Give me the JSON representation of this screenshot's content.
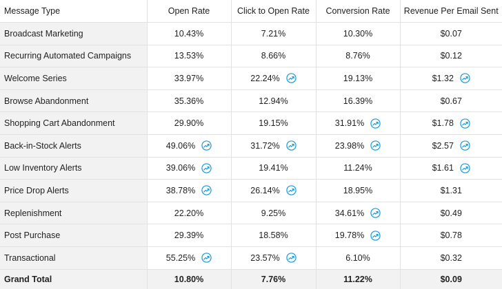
{
  "colors": {
    "trend_icon": "#1a9ad6",
    "label_bg": "#f2f2f2",
    "border": "#e2e2e2"
  },
  "table": {
    "headers": [
      "Message Type",
      "Open Rate",
      "Click to Open Rate",
      "Conversion Rate",
      "Revenue Per Email Sent"
    ],
    "rows": [
      {
        "type": "Broadcast Marketing",
        "open": "10.43%",
        "open_up": false,
        "cto": "7.21%",
        "cto_up": false,
        "conv": "10.30%",
        "conv_up": false,
        "rev": "$0.07",
        "rev_up": false
      },
      {
        "type": "Recurring Automated Campaigns",
        "open": "13.53%",
        "open_up": false,
        "cto": "8.66%",
        "cto_up": false,
        "conv": "8.76%",
        "conv_up": false,
        "rev": "$0.12",
        "rev_up": false
      },
      {
        "type": "Welcome Series",
        "open": "33.97%",
        "open_up": false,
        "cto": "22.24%",
        "cto_up": true,
        "conv": "19.13%",
        "conv_up": false,
        "rev": "$1.32",
        "rev_up": true
      },
      {
        "type": "Browse Abandonment",
        "open": "35.36%",
        "open_up": false,
        "cto": "12.94%",
        "cto_up": false,
        "conv": "16.39%",
        "conv_up": false,
        "rev": "$0.67",
        "rev_up": false
      },
      {
        "type": "Shopping Cart Abandonment",
        "open": "29.90%",
        "open_up": false,
        "cto": "19.15%",
        "cto_up": false,
        "conv": "31.91%",
        "conv_up": true,
        "rev": "$1.78",
        "rev_up": true
      },
      {
        "type": "Back-in-Stock Alerts",
        "open": "49.06%",
        "open_up": true,
        "cto": "31.72%",
        "cto_up": true,
        "conv": "23.98%",
        "conv_up": true,
        "rev": "$2.57",
        "rev_up": true
      },
      {
        "type": "Low Inventory Alerts",
        "open": "39.06%",
        "open_up": true,
        "cto": "19.41%",
        "cto_up": false,
        "conv": "11.24%",
        "conv_up": false,
        "rev": "$1.61",
        "rev_up": true
      },
      {
        "type": "Price Drop Alerts",
        "open": "38.78%",
        "open_up": true,
        "cto": "26.14%",
        "cto_up": true,
        "conv": "18.95%",
        "conv_up": false,
        "rev": "$1.31",
        "rev_up": false
      },
      {
        "type": "Replenishment",
        "open": "22.20%",
        "open_up": false,
        "cto": "9.25%",
        "cto_up": false,
        "conv": "34.61%",
        "conv_up": true,
        "rev": "$0.49",
        "rev_up": false
      },
      {
        "type": "Post Purchase",
        "open": "29.39%",
        "open_up": false,
        "cto": "18.58%",
        "cto_up": false,
        "conv": "19.78%",
        "conv_up": true,
        "rev": "$0.78",
        "rev_up": false
      },
      {
        "type": "Transactional",
        "open": "55.25%",
        "open_up": true,
        "cto": "23.57%",
        "cto_up": true,
        "conv": "6.10%",
        "conv_up": false,
        "rev": "$0.32",
        "rev_up": false
      }
    ],
    "total": {
      "type": "Grand Total",
      "open": "10.80%",
      "cto": "7.76%",
      "conv": "11.22%",
      "rev": "$0.09"
    }
  }
}
